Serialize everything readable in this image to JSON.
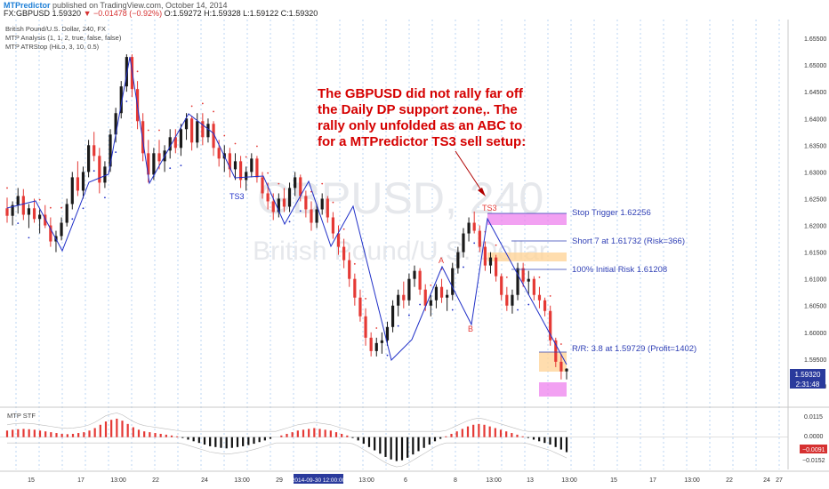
{
  "header": {
    "publisher": "MTPredictor",
    "published_on": "published on TradingView.com, October 14, 2014",
    "symbol": "FX:GBPUSD",
    "last": "1.59320",
    "change": "▼ −0.01478 (−0.92%)",
    "ohlc": "O:1.59272 H:1.59328 L:1.59122 C:1.59320"
  },
  "legend": {
    "title": "British Pound/U.S. Dollar, 240, FX",
    "indicator1": "MTP Analysis (1, 1, 2, true, false, false)",
    "indicator2": "MTP ATRStop (HiLo, 3, 10, 0.5)"
  },
  "watermark": {
    "symbol": "GBPUSD, 240",
    "name": "British Pound/U.S. Dollar"
  },
  "annotation_main": [
    "The GBPUSD did not rally far off",
    "the Daily DP support zone,. The",
    "rally only unfolded as an ABC to",
    "for a MTPredictor  TS3 sell setup:"
  ],
  "levels": {
    "stop_trigger": "Stop Trigger 1.62256",
    "short": "Short 7 at 1.61732 (Risk=366)",
    "initial_risk": "100% Initial Risk 1.61208",
    "rr": "R/R: 3.8 at 1.59729 (Profit=1402)"
  },
  "pattern_labels": {
    "ts3_left": "TS3",
    "ts3_right": "TS3",
    "a": "A",
    "b": "B"
  },
  "price_badges": {
    "last": "1.59320",
    "countdown": "2:31:48"
  },
  "oscillator": {
    "title": "MTP STF",
    "ticks": [
      "0.0115",
      "0.0000",
      "−0.0152"
    ],
    "current": "−0.0091"
  },
  "x_axis": {
    "labels": [
      "15",
      "17",
      "13:00",
      "22",
      "24",
      "13:00",
      "29",
      "2014-09-30 12:00:00",
      "13:00",
      "6",
      "8",
      "13:00",
      "13",
      "13:00",
      "15",
      "17",
      "13:00",
      "22",
      "24",
      "27"
    ],
    "highlight": "2014-09-30 12:00:00"
  },
  "colors": {
    "up": "#1a1a1a",
    "down": "#e53935",
    "pattern": "#2030c8",
    "annotation": "#d50000",
    "level_text": "#2f3fb5",
    "stop_zone": "#ee82ee",
    "entry_zone": "#ffd59a",
    "hist_pos": "#e53935",
    "hist_neg": "#111111"
  },
  "chart_data": {
    "type": "candlestick",
    "y_axis_ticks": [
      "1.65500",
      "1.65000",
      "1.64500",
      "1.64000",
      "1.63500",
      "1.63000",
      "1.62500",
      "1.62000",
      "1.61500",
      "1.61000",
      "1.60500",
      "1.60000",
      "1.59500",
      "1.59000"
    ],
    "ylim": [
      1.5865,
      1.6585
    ],
    "current_price": 1.5932,
    "levels": {
      "stop_trigger": 1.62256,
      "short_entry": 1.61732,
      "initial_risk": 1.61208,
      "target": 1.59729
    },
    "candles_ohlc": [
      [
        1.6232,
        1.6252,
        1.6205,
        1.6218
      ],
      [
        1.6218,
        1.6245,
        1.62,
        1.6238
      ],
      [
        1.6238,
        1.627,
        1.6222,
        1.6255
      ],
      [
        1.6255,
        1.6268,
        1.621,
        1.622
      ],
      [
        1.622,
        1.624,
        1.6195,
        1.6232
      ],
      [
        1.6232,
        1.625,
        1.6205,
        1.6212
      ],
      [
        1.6212,
        1.623,
        1.6185,
        1.622
      ],
      [
        1.622,
        1.6238,
        1.6195,
        1.62
      ],
      [
        1.62,
        1.6215,
        1.616,
        1.617
      ],
      [
        1.617,
        1.619,
        1.615,
        1.618
      ],
      [
        1.618,
        1.6215,
        1.6172,
        1.6205
      ],
      [
        1.6205,
        1.625,
        1.6198,
        1.624
      ],
      [
        1.624,
        1.63,
        1.623,
        1.629
      ],
      [
        1.629,
        1.632,
        1.6255,
        1.6265
      ],
      [
        1.6265,
        1.631,
        1.625,
        1.63
      ],
      [
        1.63,
        1.636,
        1.629,
        1.635
      ],
      [
        1.635,
        1.6375,
        1.632,
        1.633
      ],
      [
        1.633,
        1.6345,
        1.626,
        1.628
      ],
      [
        1.628,
        1.632,
        1.627,
        1.631
      ],
      [
        1.631,
        1.638,
        1.63,
        1.637
      ],
      [
        1.637,
        1.642,
        1.6355,
        1.641
      ],
      [
        1.641,
        1.647,
        1.64,
        1.646
      ],
      [
        1.646,
        1.652,
        1.645,
        1.6515
      ],
      [
        1.6515,
        1.652,
        1.644,
        1.6455
      ],
      [
        1.6455,
        1.647,
        1.638,
        1.6395
      ],
      [
        1.6395,
        1.641,
        1.632,
        1.6335
      ],
      [
        1.6335,
        1.636,
        1.628,
        1.6295
      ],
      [
        1.6295,
        1.6345,
        1.6285,
        1.6335
      ],
      [
        1.6335,
        1.636,
        1.6305,
        1.632
      ],
      [
        1.632,
        1.635,
        1.63,
        1.634
      ],
      [
        1.634,
        1.638,
        1.6325,
        1.6365
      ],
      [
        1.6365,
        1.638,
        1.6335,
        1.6345
      ],
      [
        1.6345,
        1.639,
        1.633,
        1.638
      ],
      [
        1.638,
        1.641,
        1.636,
        1.64
      ],
      [
        1.64,
        1.6405,
        1.634,
        1.6355
      ],
      [
        1.6355,
        1.641,
        1.6345,
        1.6395
      ],
      [
        1.6395,
        1.641,
        1.635,
        1.6365
      ],
      [
        1.6365,
        1.64,
        1.6355,
        1.639
      ],
      [
        1.639,
        1.6395,
        1.633,
        1.6345
      ],
      [
        1.6345,
        1.636,
        1.631,
        1.6325
      ],
      [
        1.6325,
        1.635,
        1.63,
        1.6335
      ],
      [
        1.6335,
        1.6345,
        1.629,
        1.6305
      ],
      [
        1.6305,
        1.6335,
        1.6285,
        1.632
      ],
      [
        1.632,
        1.633,
        1.627,
        1.6285
      ],
      [
        1.6285,
        1.631,
        1.6265,
        1.63
      ],
      [
        1.63,
        1.6335,
        1.629,
        1.6325
      ],
      [
        1.6325,
        1.633,
        1.628,
        1.629
      ],
      [
        1.629,
        1.63,
        1.625,
        1.626
      ],
      [
        1.626,
        1.628,
        1.623,
        1.6245
      ],
      [
        1.6245,
        1.626,
        1.621,
        1.6225
      ],
      [
        1.6225,
        1.626,
        1.6215,
        1.625
      ],
      [
        1.625,
        1.627,
        1.6225,
        1.6235
      ],
      [
        1.6235,
        1.628,
        1.6225,
        1.627
      ],
      [
        1.627,
        1.63,
        1.6255,
        1.629
      ],
      [
        1.629,
        1.6295,
        1.6245,
        1.6255
      ],
      [
        1.6255,
        1.6265,
        1.6215,
        1.623
      ],
      [
        1.623,
        1.6245,
        1.619,
        1.6205
      ],
      [
        1.6205,
        1.624,
        1.6195,
        1.623
      ],
      [
        1.623,
        1.626,
        1.622,
        1.625
      ],
      [
        1.625,
        1.6255,
        1.6205,
        1.6215
      ],
      [
        1.6215,
        1.6225,
        1.6175,
        1.6185
      ],
      [
        1.6185,
        1.62,
        1.6145,
        1.616
      ],
      [
        1.616,
        1.6175,
        1.612,
        1.6135
      ],
      [
        1.6135,
        1.615,
        1.6085,
        1.61
      ],
      [
        1.61,
        1.611,
        1.605,
        1.6065
      ],
      [
        1.6065,
        1.608,
        1.602,
        1.603
      ],
      [
        1.603,
        1.6045,
        1.5975,
        1.599
      ],
      [
        1.599,
        1.6,
        1.5955,
        1.5965
      ],
      [
        1.5965,
        1.599,
        1.5955,
        1.598
      ],
      [
        1.598,
        1.6,
        1.596,
        1.5985
      ],
      [
        1.5985,
        1.602,
        1.5975,
        1.601
      ],
      [
        1.601,
        1.606,
        1.6,
        1.605
      ],
      [
        1.605,
        1.608,
        1.603,
        1.607
      ],
      [
        1.607,
        1.6095,
        1.6045,
        1.606
      ],
      [
        1.606,
        1.611,
        1.605,
        1.61
      ],
      [
        1.61,
        1.6125,
        1.6085,
        1.6115
      ],
      [
        1.6115,
        1.612,
        1.607,
        1.608
      ],
      [
        1.608,
        1.609,
        1.604,
        1.605
      ],
      [
        1.605,
        1.607,
        1.603,
        1.606
      ],
      [
        1.606,
        1.609,
        1.6045,
        1.6085
      ],
      [
        1.6085,
        1.61,
        1.6055,
        1.6065
      ],
      [
        1.6065,
        1.608,
        1.604,
        1.607
      ],
      [
        1.607,
        1.613,
        1.606,
        1.612
      ],
      [
        1.612,
        1.616,
        1.611,
        1.615
      ],
      [
        1.615,
        1.6195,
        1.614,
        1.6185
      ],
      [
        1.6185,
        1.6215,
        1.617,
        1.6205
      ],
      [
        1.6205,
        1.6226,
        1.6185,
        1.619
      ],
      [
        1.619,
        1.62,
        1.615,
        1.616
      ],
      [
        1.616,
        1.617,
        1.6115,
        1.6125
      ],
      [
        1.6125,
        1.615,
        1.611,
        1.614
      ],
      [
        1.614,
        1.6145,
        1.6095,
        1.6105
      ],
      [
        1.6105,
        1.611,
        1.606,
        1.607
      ],
      [
        1.607,
        1.6085,
        1.604,
        1.605
      ],
      [
        1.605,
        1.608,
        1.6035,
        1.607
      ],
      [
        1.607,
        1.613,
        1.606,
        1.612
      ],
      [
        1.612,
        1.613,
        1.6085,
        1.6095
      ],
      [
        1.6095,
        1.6115,
        1.607,
        1.61
      ],
      [
        1.61,
        1.6105,
        1.606,
        1.607
      ],
      [
        1.607,
        1.6085,
        1.6045,
        1.606
      ],
      [
        1.606,
        1.6065,
        1.603,
        1.604
      ],
      [
        1.604,
        1.605,
        1.5975,
        1.5985
      ],
      [
        1.5985,
        1.599,
        1.5935,
        1.5945
      ],
      [
        1.5945,
        1.596,
        1.5912,
        1.5927
      ],
      [
        1.5927,
        1.5933,
        1.5912,
        1.5932
      ]
    ],
    "oscillator": {
      "name": "MTP STF",
      "ylim": [
        -0.0185,
        0.016
      ],
      "values": [
        0.004,
        0.0045,
        0.0048,
        0.005,
        0.0048,
        0.0045,
        0.004,
        0.0035,
        0.003,
        0.0025,
        0.002,
        0.0018,
        0.002,
        0.0025,
        0.003,
        0.004,
        0.0055,
        0.0075,
        0.0095,
        0.0105,
        0.0112,
        0.01,
        0.008,
        0.006,
        0.0045,
        0.0035,
        0.003,
        0.0025,
        0.002,
        0.0015,
        0.001,
        0.0005,
        -0.0005,
        -0.0015,
        -0.0025,
        -0.0035,
        -0.0045,
        -0.0055,
        -0.006,
        -0.0065,
        -0.0068,
        -0.0065,
        -0.006,
        -0.0055,
        -0.0048,
        -0.004,
        -0.003,
        -0.002,
        -0.001,
        0.0,
        0.001,
        0.002,
        0.003,
        0.004,
        0.0045,
        0.005,
        0.0055,
        0.005,
        0.0045,
        0.004,
        0.003,
        0.002,
        0.001,
        -0.0005,
        -0.002,
        -0.004,
        -0.006,
        -0.008,
        -0.01,
        -0.012,
        -0.0135,
        -0.0145,
        -0.014,
        -0.0125,
        -0.0105,
        -0.0085,
        -0.0065,
        -0.0045,
        -0.0025,
        -0.001,
        0.0005,
        0.002,
        0.0035,
        0.005,
        0.0065,
        0.0075,
        0.008,
        0.0075,
        0.0065,
        0.0055,
        0.0045,
        0.0035,
        0.0025,
        0.0015,
        0.0005,
        -0.0005,
        -0.0015,
        -0.0025,
        -0.0035,
        -0.0045,
        -0.006,
        -0.0075,
        -0.0091
      ]
    }
  }
}
